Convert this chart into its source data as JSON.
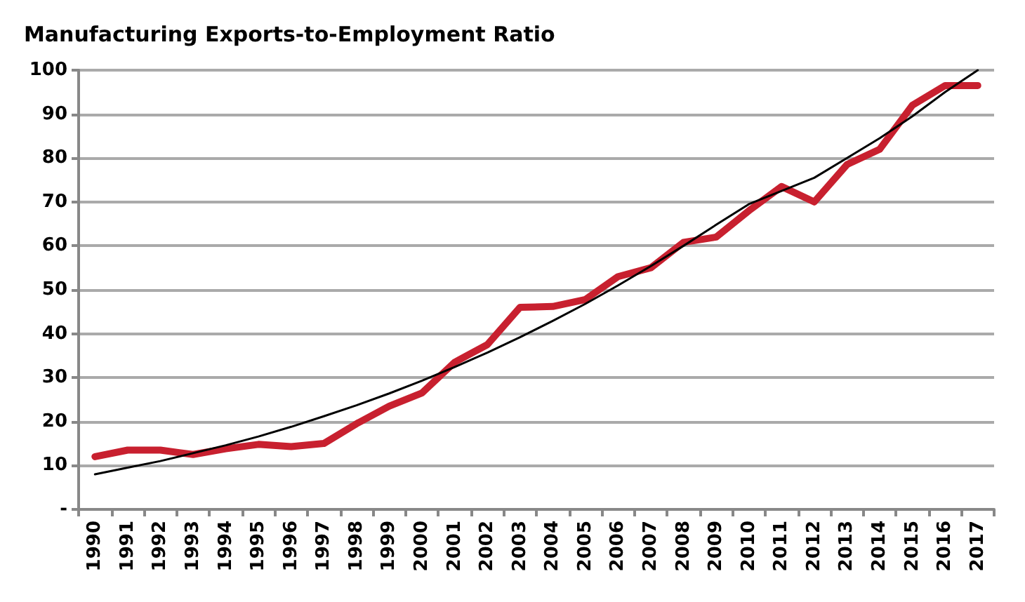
{
  "chart_data": {
    "type": "line",
    "title": "Manufacturing Exports-to-Employment Ratio",
    "categories": [
      "1990",
      "1991",
      "1992",
      "1993",
      "1994",
      "1995",
      "1996",
      "1997",
      "1998",
      "1999",
      "2000",
      "2001",
      "2002",
      "2003",
      "2004",
      "2005",
      "2006",
      "2007",
      "2008",
      "2009",
      "2010",
      "2011",
      "2012",
      "2013",
      "2014",
      "2015",
      "2016",
      "2017"
    ],
    "series": [
      {
        "color": "#c8202f",
        "values": [
          12,
          13.5,
          13.5,
          12.5,
          13.8,
          14.8,
          14.3,
          15,
          19.5,
          23.5,
          26.5,
          33.5,
          37.5,
          46,
          46.2,
          47.8,
          53,
          55,
          60.8,
          62,
          68,
          73.5,
          70,
          78.5,
          82,
          92,
          96.5,
          96.5
        ]
      },
      {
        "color": "#000000",
        "values": [
          8,
          9.5,
          11,
          12.8,
          14.6,
          16.6,
          18.8,
          21.2,
          23.7,
          26.4,
          29.3,
          32.4,
          35.7,
          39.2,
          42.9,
          46.8,
          51,
          55.4,
          60,
          64.8,
          69.5,
          72.5,
          75.5,
          80,
          84.5,
          89.5,
          95,
          100
        ]
      }
    ],
    "ylim": [
      0,
      100
    ],
    "yticks": [
      {
        "value": 0,
        "label": "-"
      },
      10,
      20,
      30,
      40,
      50,
      60,
      70,
      80,
      90,
      100
    ],
    "grid": "y",
    "marker": "none",
    "line_style": "solid"
  }
}
